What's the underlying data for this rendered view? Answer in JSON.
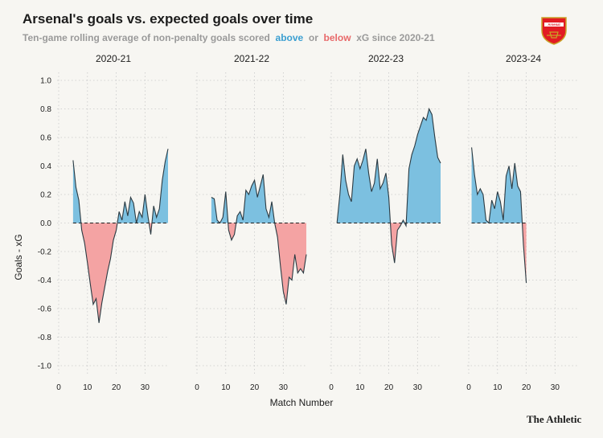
{
  "header": {
    "title": "Arsenal's goals vs. expected goals over time",
    "subtitle_pre": "Ten-game rolling average of non-penalty goals scored",
    "subtitle_above": "above",
    "subtitle_or": "or",
    "subtitle_below": "below",
    "subtitle_post": "xG since 2020-21",
    "logo_text": "Arsenal"
  },
  "footer": {
    "credit": "The Athletic"
  },
  "colors": {
    "above": "#7cc0e0",
    "below": "#f4a3a3",
    "line": "#2b3a42",
    "grid": "#c9c9c9"
  },
  "chart_data": {
    "type": "area",
    "xlabel": "Match Number",
    "ylabel": "Goals - xG",
    "ylim": [
      -1.0,
      1.0
    ],
    "yticks": [
      -1.0,
      -0.8,
      -0.6,
      -0.4,
      -0.2,
      0.0,
      0.2,
      0.4,
      0.6,
      0.8,
      1.0
    ],
    "ytick_labels": [
      "-1.0",
      "-0.8",
      "-0.6",
      "-0.4",
      "-0.2",
      "0.0",
      "0.2",
      "0.4",
      "0.6",
      "0.8",
      "1.0"
    ],
    "xlim": [
      0,
      38
    ],
    "xticks": [
      0,
      10,
      20,
      30
    ],
    "xtick_labels": [
      "0",
      "10",
      "20",
      "30"
    ],
    "grid": true,
    "panels": [
      {
        "title": "2020-21",
        "x": [
          5,
          6,
          7,
          8,
          9,
          10,
          11,
          12,
          13,
          14,
          15,
          16,
          17,
          18,
          19,
          20,
          21,
          22,
          23,
          24,
          25,
          26,
          27,
          28,
          29,
          30,
          31,
          32,
          33,
          34,
          35,
          36,
          37,
          38
        ],
        "values": [
          0.44,
          0.25,
          0.16,
          -0.05,
          -0.14,
          -0.28,
          -0.43,
          -0.57,
          -0.53,
          -0.7,
          -0.56,
          -0.45,
          -0.34,
          -0.25,
          -0.12,
          -0.05,
          0.08,
          0.02,
          0.15,
          0.05,
          0.18,
          0.14,
          0.0,
          0.08,
          0.04,
          0.2,
          0.05,
          -0.08,
          0.12,
          0.04,
          0.1,
          0.3,
          0.43,
          0.52
        ]
      },
      {
        "title": "2021-22",
        "x": [
          5,
          6,
          7,
          8,
          9,
          10,
          11,
          12,
          13,
          14,
          15,
          16,
          17,
          18,
          19,
          20,
          21,
          22,
          23,
          24,
          25,
          26,
          27,
          28,
          29,
          30,
          31,
          32,
          33,
          34,
          35,
          36,
          37,
          38
        ],
        "values": [
          0.18,
          0.17,
          0.02,
          0.0,
          0.04,
          0.22,
          -0.05,
          -0.12,
          -0.08,
          0.05,
          0.08,
          0.02,
          0.23,
          0.2,
          0.26,
          0.3,
          0.18,
          0.26,
          0.34,
          0.1,
          0.04,
          0.15,
          0.0,
          -0.1,
          -0.3,
          -0.48,
          -0.57,
          -0.38,
          -0.4,
          -0.22,
          -0.35,
          -0.32,
          -0.35,
          -0.22
        ]
      },
      {
        "title": "2022-23",
        "x": [
          2,
          3,
          4,
          5,
          6,
          7,
          8,
          9,
          10,
          11,
          12,
          13,
          14,
          15,
          16,
          17,
          18,
          19,
          20,
          21,
          22,
          23,
          24,
          25,
          26,
          27,
          28,
          29,
          30,
          31,
          32,
          33,
          34,
          35,
          36,
          37,
          38
        ],
        "values": [
          0.0,
          0.2,
          0.48,
          0.3,
          0.2,
          0.15,
          0.4,
          0.45,
          0.38,
          0.44,
          0.52,
          0.35,
          0.22,
          0.28,
          0.45,
          0.24,
          0.28,
          0.35,
          0.18,
          -0.15,
          -0.28,
          -0.05,
          -0.02,
          0.02,
          -0.02,
          0.38,
          0.48,
          0.54,
          0.62,
          0.68,
          0.74,
          0.72,
          0.8,
          0.76,
          0.6,
          0.46,
          0.42
        ]
      },
      {
        "title": "2023-24",
        "x": [
          1,
          2,
          3,
          4,
          5,
          6,
          7,
          8,
          9,
          10,
          11,
          12,
          13,
          14,
          15,
          16,
          17,
          18,
          19,
          20
        ],
        "values": [
          0.53,
          0.34,
          0.2,
          0.24,
          0.2,
          0.02,
          0.0,
          0.16,
          0.1,
          0.22,
          0.15,
          0.02,
          0.33,
          0.4,
          0.24,
          0.42,
          0.26,
          0.22,
          -0.15,
          -0.42
        ]
      }
    ]
  }
}
